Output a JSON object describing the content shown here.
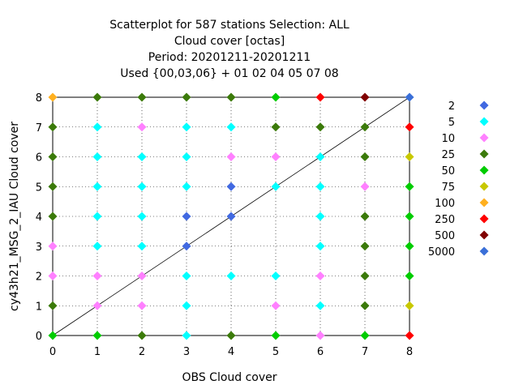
{
  "chart_data": {
    "type": "scatter",
    "title_lines": [
      "Scatterplot for  587 stations Selection: ALL",
      "Cloud cover [octas]",
      "Period: 20201211-20201211",
      "Used {00,03,06} + 01 02 04 05 07 08"
    ],
    "xlabel": "OBS Cloud cover",
    "ylabel": "cy43h21_MSG_2_IAU Cloud cover",
    "xlim": [
      0,
      8
    ],
    "ylim": [
      0,
      8
    ],
    "xticks": [
      "0",
      "1",
      "2",
      "3",
      "4",
      "5",
      "6",
      "7",
      "8"
    ],
    "yticks": [
      "0",
      "1",
      "2",
      "3",
      "4",
      "5",
      "6",
      "7",
      "8"
    ],
    "grid": true,
    "diagonal": true,
    "legend_position": "right",
    "legend": [
      {
        "label": "2",
        "color": "#4169E1"
      },
      {
        "label": "5",
        "color": "#00FFFF"
      },
      {
        "label": "10",
        "color": "#FF80FF"
      },
      {
        "label": "25",
        "color": "#3B7A0A"
      },
      {
        "label": "50",
        "color": "#00CC00"
      },
      {
        "label": "75",
        "color": "#C8C800"
      },
      {
        "label": "100",
        "color": "#FFB020"
      },
      {
        "label": "250",
        "color": "#FF0000"
      },
      {
        "label": "500",
        "color": "#800000"
      },
      {
        "label": "5000",
        "color": "#3A6FD8"
      }
    ],
    "points": [
      {
        "x": 0,
        "y": 0,
        "cat": "50"
      },
      {
        "x": 0,
        "y": 1,
        "cat": "25"
      },
      {
        "x": 0,
        "y": 2,
        "cat": "10"
      },
      {
        "x": 0,
        "y": 3,
        "cat": "10"
      },
      {
        "x": 0,
        "y": 4,
        "cat": "25"
      },
      {
        "x": 0,
        "y": 5,
        "cat": "25"
      },
      {
        "x": 0,
        "y": 6,
        "cat": "25"
      },
      {
        "x": 0,
        "y": 7,
        "cat": "25"
      },
      {
        "x": 0,
        "y": 8,
        "cat": "100"
      },
      {
        "x": 1,
        "y": 0,
        "cat": "50"
      },
      {
        "x": 1,
        "y": 1,
        "cat": "10"
      },
      {
        "x": 1,
        "y": 2,
        "cat": "10"
      },
      {
        "x": 1,
        "y": 3,
        "cat": "5"
      },
      {
        "x": 1,
        "y": 4,
        "cat": "5"
      },
      {
        "x": 1,
        "y": 5,
        "cat": "5"
      },
      {
        "x": 1,
        "y": 6,
        "cat": "5"
      },
      {
        "x": 1,
        "y": 7,
        "cat": "5"
      },
      {
        "x": 1,
        "y": 8,
        "cat": "25"
      },
      {
        "x": 2,
        "y": 0,
        "cat": "25"
      },
      {
        "x": 2,
        "y": 1,
        "cat": "10"
      },
      {
        "x": 2,
        "y": 2,
        "cat": "10"
      },
      {
        "x": 2,
        "y": 3,
        "cat": "5"
      },
      {
        "x": 2,
        "y": 4,
        "cat": "5"
      },
      {
        "x": 2,
        "y": 5,
        "cat": "5"
      },
      {
        "x": 2,
        "y": 6,
        "cat": "5"
      },
      {
        "x": 2,
        "y": 7,
        "cat": "10"
      },
      {
        "x": 2,
        "y": 8,
        "cat": "25"
      },
      {
        "x": 3,
        "y": 0,
        "cat": "5"
      },
      {
        "x": 3,
        "y": 1,
        "cat": "5"
      },
      {
        "x": 3,
        "y": 2,
        "cat": "5"
      },
      {
        "x": 3,
        "y": 3,
        "cat": "2"
      },
      {
        "x": 3,
        "y": 4,
        "cat": "2"
      },
      {
        "x": 3,
        "y": 5,
        "cat": "5"
      },
      {
        "x": 3,
        "y": 6,
        "cat": "5"
      },
      {
        "x": 3,
        "y": 7,
        "cat": "5"
      },
      {
        "x": 3,
        "y": 8,
        "cat": "25"
      },
      {
        "x": 4,
        "y": 0,
        "cat": "25"
      },
      {
        "x": 4,
        "y": 2,
        "cat": "5"
      },
      {
        "x": 4,
        "y": 4,
        "cat": "2"
      },
      {
        "x": 4,
        "y": 5,
        "cat": "2"
      },
      {
        "x": 4,
        "y": 6,
        "cat": "10"
      },
      {
        "x": 4,
        "y": 7,
        "cat": "5"
      },
      {
        "x": 4,
        "y": 8,
        "cat": "25"
      },
      {
        "x": 5,
        "y": 0,
        "cat": "50"
      },
      {
        "x": 5,
        "y": 1,
        "cat": "10"
      },
      {
        "x": 5,
        "y": 2,
        "cat": "5"
      },
      {
        "x": 5,
        "y": 5,
        "cat": "5"
      },
      {
        "x": 5,
        "y": 6,
        "cat": "10"
      },
      {
        "x": 5,
        "y": 7,
        "cat": "25"
      },
      {
        "x": 5,
        "y": 8,
        "cat": "50"
      },
      {
        "x": 6,
        "y": 0,
        "cat": "10"
      },
      {
        "x": 6,
        "y": 1,
        "cat": "5"
      },
      {
        "x": 6,
        "y": 2,
        "cat": "10"
      },
      {
        "x": 6,
        "y": 3,
        "cat": "5"
      },
      {
        "x": 6,
        "y": 4,
        "cat": "5"
      },
      {
        "x": 6,
        "y": 5,
        "cat": "5"
      },
      {
        "x": 6,
        "y": 6,
        "cat": "5"
      },
      {
        "x": 6,
        "y": 7,
        "cat": "25"
      },
      {
        "x": 6,
        "y": 8,
        "cat": "250"
      },
      {
        "x": 7,
        "y": 0,
        "cat": "50"
      },
      {
        "x": 7,
        "y": 1,
        "cat": "25"
      },
      {
        "x": 7,
        "y": 2,
        "cat": "25"
      },
      {
        "x": 7,
        "y": 3,
        "cat": "25"
      },
      {
        "x": 7,
        "y": 4,
        "cat": "25"
      },
      {
        "x": 7,
        "y": 5,
        "cat": "10"
      },
      {
        "x": 7,
        "y": 6,
        "cat": "25"
      },
      {
        "x": 7,
        "y": 7,
        "cat": "25"
      },
      {
        "x": 7,
        "y": 8,
        "cat": "500"
      },
      {
        "x": 8,
        "y": 0,
        "cat": "250"
      },
      {
        "x": 8,
        "y": 1,
        "cat": "75"
      },
      {
        "x": 8,
        "y": 2,
        "cat": "50"
      },
      {
        "x": 8,
        "y": 3,
        "cat": "50"
      },
      {
        "x": 8,
        "y": 4,
        "cat": "50"
      },
      {
        "x": 8,
        "y": 5,
        "cat": "50"
      },
      {
        "x": 8,
        "y": 6,
        "cat": "75"
      },
      {
        "x": 8,
        "y": 7,
        "cat": "250"
      },
      {
        "x": 8,
        "y": 8,
        "cat": "5000"
      }
    ]
  }
}
